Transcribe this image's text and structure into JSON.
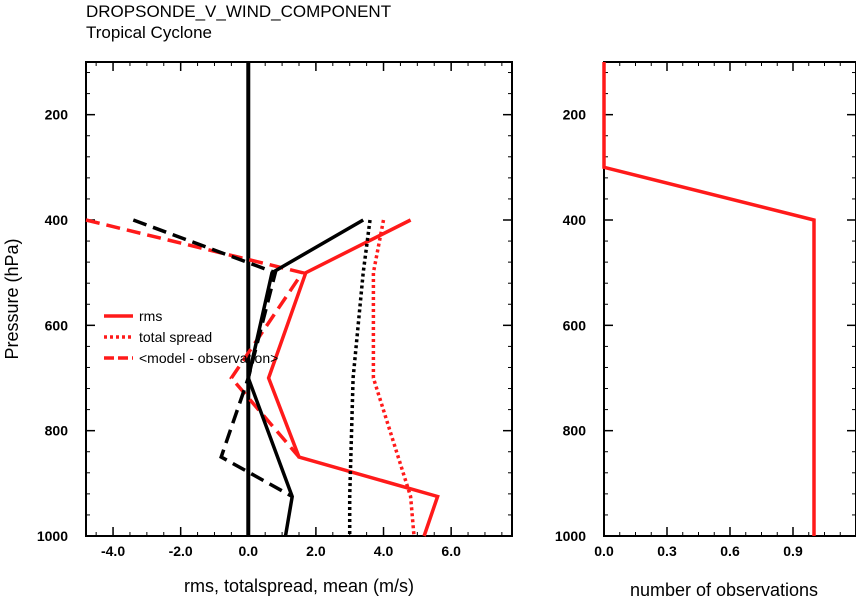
{
  "header": {
    "title": "DROPSONDE_V_WIND_COMPONENT",
    "subtitle": "Tropical Cyclone"
  },
  "colors": {
    "red": "#ff1a1a",
    "black": "#000000"
  },
  "chart_data": [
    {
      "type": "line",
      "xlabel": "rms, totalspread, mean (m/s)",
      "ylabel": "Pressure (hPa)",
      "xlim": [
        -4.8,
        7.8
      ],
      "ylim": [
        1000,
        100
      ],
      "y_inverted": true,
      "xticks": [
        -4.0,
        -2.0,
        0.0,
        2.0,
        4.0,
        6.0
      ],
      "xtick_labels": [
        "-4.0",
        "-2.0",
        "0.0",
        "2.0",
        "4.0",
        "6.0"
      ],
      "yticks": [
        200,
        400,
        600,
        800,
        1000
      ],
      "ytick_labels": [
        "200",
        "400",
        "600",
        "800",
        "1000"
      ],
      "grid": false,
      "zero_line": true,
      "legend": {
        "position": "center-left",
        "entries": [
          {
            "label": "rms",
            "color": "#ff1a1a",
            "style": "solid"
          },
          {
            "label": "total spread",
            "color": "#ff1a1a",
            "style": "dotted"
          },
          {
            "label": "<model - observation>",
            "color": "#ff1a1a",
            "style": "dashed"
          }
        ]
      },
      "series": [
        {
          "name": "rms",
          "color": "#ff1a1a",
          "style": "solid",
          "points": [
            [
              4.8,
              400
            ],
            [
              1.7,
              500
            ],
            [
              0.6,
              700
            ],
            [
              1.5,
              850
            ],
            [
              5.6,
              925
            ],
            [
              5.2,
              1000
            ]
          ]
        },
        {
          "name": "total spread",
          "color": "#ff1a1a",
          "style": "dotted",
          "points": [
            [
              4.0,
              400
            ],
            [
              3.7,
              500
            ],
            [
              3.7,
              700
            ],
            [
              4.8,
              925
            ],
            [
              4.9,
              1000
            ]
          ]
        },
        {
          "name": "<model - observation>",
          "color": "#ff1a1a",
          "style": "dashed",
          "points": [
            [
              -4.8,
              400
            ],
            [
              1.6,
              500
            ],
            [
              -0.5,
              700
            ],
            [
              1.5,
              850
            ]
          ]
        },
        {
          "color": "#000000",
          "style": "solid",
          "points": [
            [
              3.4,
              400
            ],
            [
              0.7,
              500
            ],
            [
              0.0,
              700
            ],
            [
              1.3,
              925
            ],
            [
              1.1,
              1000
            ]
          ]
        },
        {
          "color": "#000000",
          "style": "dotted",
          "points": [
            [
              3.6,
              400
            ],
            [
              3.4,
              500
            ],
            [
              3.1,
              700
            ],
            [
              3.0,
              925
            ],
            [
              3.0,
              1000
            ]
          ]
        },
        {
          "color": "#000000",
          "style": "dashed",
          "points": [
            [
              -3.4,
              400
            ],
            [
              0.8,
              500
            ],
            [
              0.0,
              700
            ],
            [
              -0.8,
              850
            ],
            [
              1.3,
              925
            ]
          ]
        }
      ]
    },
    {
      "type": "line",
      "xlabel": "number of observations",
      "ylabel": "",
      "xlim": [
        0.0,
        1.2
      ],
      "ylim": [
        1000,
        100
      ],
      "y_inverted": true,
      "xticks": [
        0.0,
        0.3,
        0.6,
        0.9
      ],
      "xtick_labels": [
        "0.0",
        "0.3",
        "0.6",
        "0.9"
      ],
      "yticks": [
        200,
        400,
        600,
        800,
        1000
      ],
      "ytick_labels": [
        "200",
        "400",
        "600",
        "800",
        "1000"
      ],
      "grid": false,
      "series": [
        {
          "color": "#ff1a1a",
          "style": "solid",
          "points": [
            [
              0,
              100
            ],
            [
              0,
              300
            ],
            [
              1,
              400
            ],
            [
              1,
              1000
            ]
          ]
        }
      ]
    }
  ]
}
